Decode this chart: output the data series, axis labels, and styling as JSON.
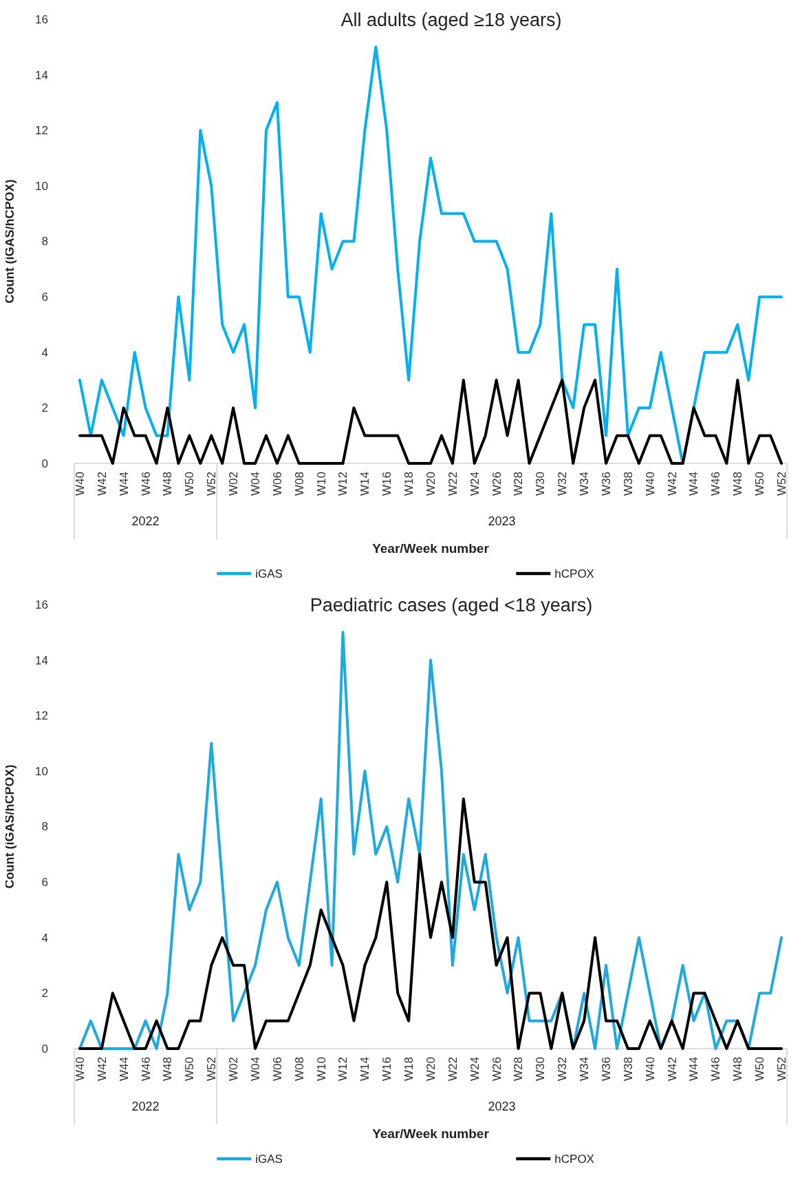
{
  "chart_data": [
    {
      "type": "line",
      "title": "All adults (aged ≥18 years)",
      "xlabel": "Year/Week number",
      "ylabel": "Count (iGAS/hCPOX)",
      "annotations": [
        "2022",
        "2023"
      ],
      "categories": [
        "W40",
        null,
        "W42",
        null,
        "W44",
        null,
        "W46",
        null,
        "W48",
        null,
        "W50",
        null,
        "W52",
        null,
        "W02",
        null,
        "W04",
        null,
        "W06",
        null,
        "W08",
        null,
        "W10",
        null,
        "W12",
        null,
        "W14",
        null,
        "W16",
        null,
        "W18",
        null,
        "W20",
        null,
        "W22",
        null,
        "W24",
        null,
        "W26",
        null,
        "W28",
        null,
        "W30",
        null,
        "W32",
        null,
        "W34",
        null,
        "W36",
        null,
        "W38",
        null,
        "W40",
        null,
        "W42",
        null,
        "W44",
        null,
        "W46",
        null,
        "W48",
        null,
        "W50",
        null,
        "W52"
      ],
      "series": [
        {
          "name": "iGAS",
          "color": "#00b0f0",
          "values": [
            3,
            1,
            3,
            2,
            1,
            4,
            2,
            1,
            1,
            6,
            3,
            12,
            10,
            5,
            4,
            5,
            2,
            12,
            13,
            6,
            6,
            4,
            9,
            7,
            8,
            8,
            12,
            15,
            12,
            7,
            3,
            8,
            11,
            9,
            9,
            9,
            8,
            8,
            8,
            7,
            4,
            4,
            5,
            9,
            3,
            2,
            5,
            5,
            1,
            7,
            1,
            2,
            2,
            4,
            2,
            0,
            2,
            4,
            4,
            4,
            5,
            3,
            6,
            6,
            6
          ]
        },
        {
          "name": "hCPOX",
          "color": "#000000",
          "values": [
            1,
            1,
            1,
            0,
            2,
            1,
            1,
            0,
            2,
            0,
            1,
            0,
            1,
            0,
            2,
            0,
            0,
            1,
            0,
            1,
            0,
            0,
            0,
            0,
            0,
            2,
            1,
            1,
            1,
            1,
            0,
            0,
            0,
            1,
            0,
            3,
            0,
            1,
            3,
            1,
            3,
            0,
            1,
            2,
            3,
            0,
            2,
            3,
            0,
            1,
            1,
            0,
            1,
            1,
            0,
            0,
            2,
            1,
            1,
            0,
            3,
            0,
            1,
            1,
            0
          ]
        }
      ],
      "ylim": [
        0,
        16
      ],
      "yticks": [
        0,
        2,
        4,
        6,
        8,
        10,
        12,
        14,
        16
      ],
      "grid": false,
      "legend": "bottom",
      "line_style": "solid"
    },
    {
      "type": "line",
      "title": "Paediatric cases (aged <18 years)",
      "xlabel": "Year/Week number",
      "ylabel": "Count (iGAS/hCPOX)",
      "annotations": [
        "2022",
        "2023"
      ],
      "categories": [
        "W40",
        null,
        "W42",
        null,
        "W44",
        null,
        "W46",
        null,
        "W48",
        null,
        "W50",
        null,
        "W52",
        null,
        "W02",
        null,
        "W04",
        null,
        "W06",
        null,
        "W08",
        null,
        "W10",
        null,
        "W12",
        null,
        "W14",
        null,
        "W16",
        null,
        "W18",
        null,
        "W20",
        null,
        "W22",
        null,
        "W24",
        null,
        "W26",
        null,
        "W28",
        null,
        "W30",
        null,
        "W32",
        null,
        "W34",
        null,
        "W36",
        null,
        "W38",
        null,
        "W40",
        null,
        "W42",
        null,
        "W44",
        null,
        "W46",
        null,
        "W48",
        null,
        "W50",
        null,
        "W52"
      ],
      "series": [
        {
          "name": "iGAS",
          "color": "#1fa9e1",
          "values": [
            0,
            1,
            0,
            0,
            0,
            0,
            1,
            0,
            2,
            7,
            5,
            6,
            11,
            6,
            1,
            2,
            3,
            5,
            6,
            4,
            3,
            6,
            9,
            3,
            15,
            7,
            10,
            7,
            8,
            6,
            9,
            7,
            14,
            10,
            3,
            7,
            5,
            7,
            4,
            2,
            4,
            1,
            1,
            1,
            2,
            0,
            2,
            0,
            3,
            0,
            2,
            4,
            2,
            0,
            1,
            3,
            1,
            2,
            0,
            1,
            1,
            0,
            2,
            2,
            4
          ]
        },
        {
          "name": "hCPOX",
          "color": "#000000",
          "values": [
            0,
            0,
            0,
            2,
            1,
            0,
            0,
            1,
            0,
            0,
            1,
            1,
            3,
            4,
            3,
            3,
            0,
            1,
            1,
            1,
            2,
            3,
            5,
            4,
            3,
            1,
            3,
            4,
            6,
            2,
            1,
            7,
            4,
            6,
            4,
            9,
            6,
            6,
            3,
            4,
            0,
            2,
            2,
            0,
            2,
            0,
            1,
            4,
            1,
            1,
            0,
            0,
            1,
            0,
            1,
            0,
            2,
            2,
            1,
            0,
            1,
            0,
            0,
            0,
            0
          ]
        }
      ],
      "ylim": [
        0,
        16
      ],
      "yticks": [
        0,
        2,
        4,
        6,
        8,
        10,
        12,
        14,
        16
      ],
      "grid": false,
      "legend": "bottom",
      "line_style": "solid"
    }
  ]
}
